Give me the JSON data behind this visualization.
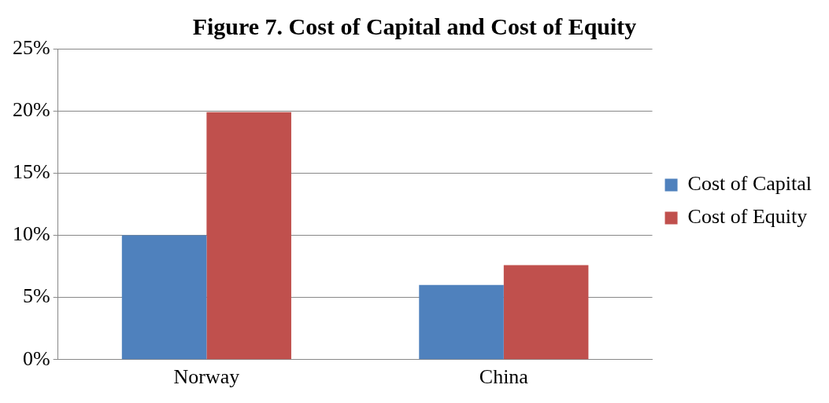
{
  "chart_data": {
    "type": "bar",
    "title": "Figure 7. Cost of Capital and Cost of Equity",
    "categories": [
      "Norway",
      "China"
    ],
    "series": [
      {
        "name": "Cost of Capital",
        "color": "#4f81bd",
        "values": [
          10,
          6
        ]
      },
      {
        "name": "Cost of Equity",
        "color": "#c0504d",
        "values": [
          19.9,
          7.6
        ]
      }
    ],
    "ylim": [
      0,
      25
    ],
    "yticks": [
      {
        "value": 0,
        "label": "0%"
      },
      {
        "value": 5,
        "label": "5%"
      },
      {
        "value": 10,
        "label": "10%"
      },
      {
        "value": 15,
        "label": "15%"
      },
      {
        "value": 20,
        "label": "20%"
      },
      {
        "value": 25,
        "label": "25%"
      }
    ],
    "grid": "y",
    "legend": "right"
  }
}
